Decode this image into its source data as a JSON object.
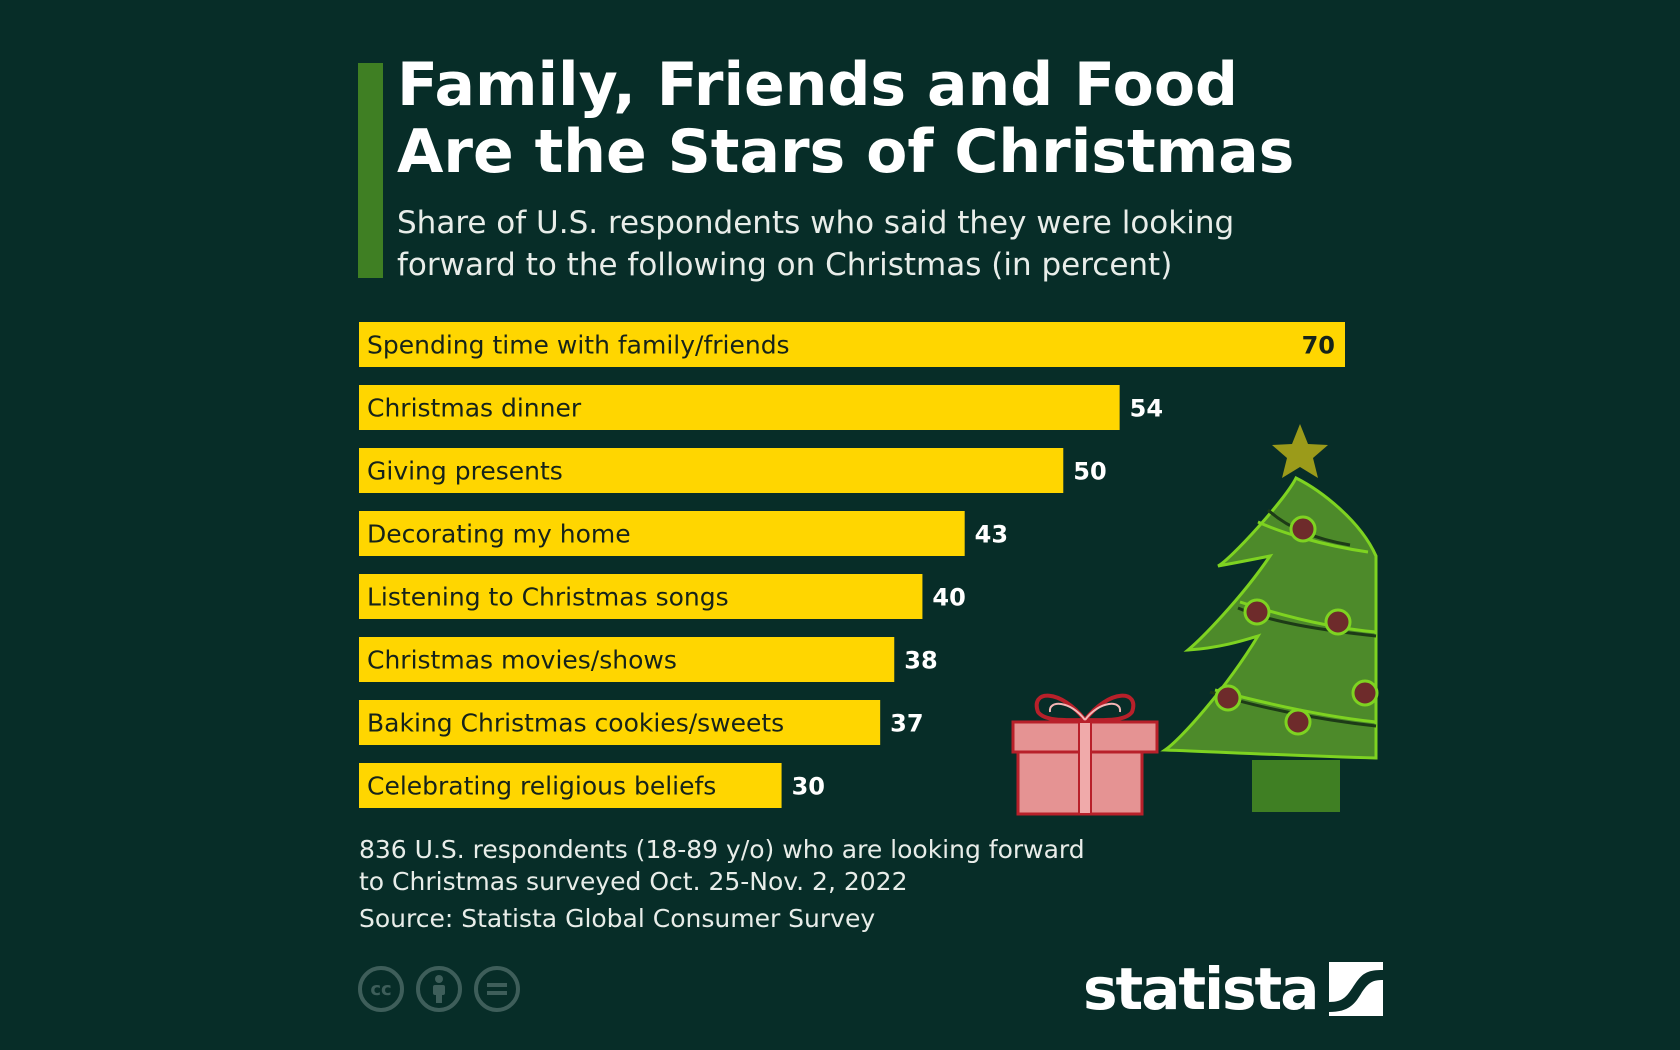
{
  "colors": {
    "background": "#072d28",
    "accent": "#3f7f23",
    "bar": "#ffd600",
    "bar_text": "#16231a",
    "value_outside": "#ffffff"
  },
  "header": {
    "title_line1": "Family, Friends and Food",
    "title_line2": "Are the Stars of Christmas",
    "subtitle_line1": "Share of U.S. respondents who said they were looking",
    "subtitle_line2": "forward to the following on Christmas (in percent)"
  },
  "chart_data": {
    "type": "bar",
    "orientation": "horizontal",
    "title": "Family, Friends and Food Are the Stars of Christmas",
    "subtitle": "Share of U.S. respondents who said they were looking forward to the following on Christmas (in percent)",
    "categories": [
      "Spending time with family/friends",
      "Christmas dinner",
      "Giving presents",
      "Decorating my home",
      "Listening to Christmas songs",
      "Christmas movies/shows",
      "Baking Christmas cookies/sweets",
      "Celebrating religious beliefs"
    ],
    "values": [
      70,
      54,
      50,
      43,
      40,
      38,
      37,
      30
    ],
    "xlim": [
      0,
      70
    ],
    "unit": "percent",
    "grid": false,
    "legend": "none"
  },
  "footer": {
    "note_line1": "836 U.S. respondents (18-89 y/o) who are looking forward",
    "note_line2": "to Christmas surveyed Oct. 25-Nov. 2, 2022",
    "source": "Source: Statista Global Consumer Survey",
    "license_icons": [
      "cc-icon",
      "attribution-icon",
      "no-derivatives-icon"
    ],
    "brand": "statista"
  }
}
